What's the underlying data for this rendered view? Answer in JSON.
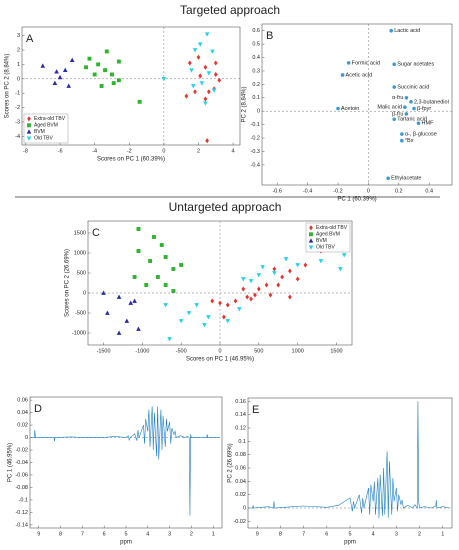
{
  "headings": [
    "Targeted approach",
    "Untargeted approach"
  ],
  "chart_data": [
    {
      "type": "scatter",
      "panel_label": "A",
      "x_label": "Scores on PC 1 (60.39%)",
      "y_label": "Scores on PC 2 (8.84%)",
      "xlim": [
        -8.2,
        4.4
      ],
      "ylim": [
        -4.6,
        3.6
      ],
      "xticks": [
        -8,
        -6,
        -4,
        -2,
        0,
        2,
        4
      ],
      "yticks": [
        -4,
        -3,
        -2,
        -1,
        0,
        1,
        2,
        3
      ],
      "zero_line_x": true,
      "zero_line_y": true,
      "legend": "lower left",
      "series": [
        {
          "name": "Extra-old TBV",
          "color": "#e8322c",
          "marker": "diamond",
          "x": [
            1.5,
            2,
            2.4,
            2.1,
            3,
            3.2,
            2.6,
            1.8,
            2.4,
            2.5,
            3,
            1.3,
            2.9
          ],
          "values": [
            1.1,
            1.5,
            0.8,
            0.2,
            0.3,
            -0.1,
            -0.9,
            -0.9,
            -1.4,
            -4.3,
            1.1,
            -1.2,
            -0.7
          ]
        },
        {
          "name": "Aged BVM",
          "color": "#2db52d",
          "marker": "square",
          "x": [
            -3.3,
            -2.6,
            -3.8,
            -4.5,
            -3.4,
            -4,
            -3,
            -2.9,
            -3.6,
            -1.4,
            -2.6,
            -4.3
          ],
          "values": [
            1.9,
            1.2,
            1,
            0.8,
            0.6,
            0.3,
            0.3,
            -0.3,
            -0.5,
            -1.6,
            -0.1,
            1.4
          ]
        },
        {
          "name": "BVM",
          "color": "#2a2aa8",
          "marker": "triangle-up",
          "x": [
            -7,
            -6.2,
            -5.7,
            -5.3,
            -5.5,
            -6,
            -6.3
          ],
          "values": [
            0.9,
            0.5,
            0.6,
            1.3,
            -0.5,
            0.1,
            -0.3
          ]
        },
        {
          "name": "Old TBV",
          "color": "#27d3e6",
          "marker": "triangle-down",
          "x": [
            2.5,
            2.1,
            1.8,
            2.8,
            0,
            2.2,
            2.9,
            1.7,
            2.4,
            1.6,
            2.6
          ],
          "values": [
            3.1,
            2.4,
            2,
            1.9,
            0,
            -0.3,
            -0.8,
            -0.5,
            -1.7,
            0.6,
            0.4
          ]
        }
      ]
    },
    {
      "type": "scatter",
      "panel_label": "B",
      "x_label": "PC 1 (60.39%)",
      "y_label": "PC 2 (8.84%)",
      "xlim": [
        -0.7,
        0.55
      ],
      "ylim": [
        -0.55,
        0.65
      ],
      "xticks": [
        -0.6,
        -0.4,
        -0.2,
        0,
        0.2,
        0.4
      ],
      "yticks": [
        0.6,
        0.5,
        0.4,
        0.3,
        0.2,
        0.1,
        0,
        -0.1,
        -0.2,
        -0.3,
        -0.4
      ],
      "zero_line_x": true,
      "zero_line_y": true,
      "series": [
        {
          "color": "#3a9ad9",
          "marker": "circle",
          "labels": [
            "Lactic acid",
            "Formic acid",
            "Sugar acetates",
            "Acetic acid",
            "Succinic acid",
            "α-fru",
            "Acetoin",
            "Malic acid",
            "2,3-butanediol",
            "β-fpyr",
            "β-fru",
            "Tartaric acid",
            "HMF",
            "α-, β-glucose",
            "°Bx",
            "Ethylacetate"
          ],
          "x": [
            0.15,
            -0.13,
            0.17,
            -0.17,
            0.17,
            0.25,
            -0.2,
            0.24,
            0.28,
            0.3,
            0.25,
            0.17,
            0.33,
            0.22,
            0.22,
            0.13
          ],
          "values": [
            0.6,
            0.36,
            0.35,
            0.27,
            0.18,
            0.1,
            0.02,
            0.03,
            0.07,
            0.02,
            -0.02,
            -0.06,
            -0.09,
            -0.17,
            -0.22,
            -0.5
          ]
        }
      ]
    },
    {
      "type": "scatter",
      "panel_label": "C",
      "x_label": "Scores on PC 1 (46.95%)",
      "y_label": "Scores on PC 2 (26.69%)",
      "xlim": [
        -1700,
        1700
      ],
      "ylim": [
        -1300,
        1800
      ],
      "xticks": [
        -1500,
        -1000,
        -500,
        0,
        500,
        1000,
        1500
      ],
      "yticks": [
        -1000,
        -500,
        0,
        500,
        1000,
        1500
      ],
      "zero_line_x": true,
      "zero_line_y": true,
      "legend": "upper right",
      "series": [
        {
          "name": "Extra-old TBV",
          "color": "#e8322c",
          "marker": "diamond",
          "x": [
            1150,
            1300,
            1100,
            900,
            800,
            700,
            600,
            500,
            450,
            350,
            300,
            200,
            100,
            0,
            -100,
            50,
            900,
            750,
            1000,
            650,
            400
          ],
          "values": [
            1400,
            1050,
            700,
            550,
            400,
            600,
            200,
            100,
            -50,
            -100,
            100,
            -200,
            -300,
            -250,
            -200,
            -600,
            -100,
            200,
            350,
            -50,
            -150
          ]
        },
        {
          "name": "Aged BVM",
          "color": "#2db52d",
          "marker": "square",
          "x": [
            -1050,
            -750,
            -850,
            -1050,
            -900,
            -700,
            -600,
            -800,
            -700,
            -600,
            -1100,
            -950,
            -500
          ],
          "values": [
            1600,
            1200,
            1400,
            1050,
            800,
            900,
            600,
            400,
            200,
            50,
            400,
            200,
            700
          ]
        },
        {
          "name": "BVM",
          "color": "#2a2aa8",
          "marker": "triangle-up",
          "x": [
            -1500,
            -1300,
            -1100,
            -1450,
            -1200,
            -1300,
            -1050,
            -1150
          ],
          "values": [
            0,
            -100,
            -200,
            -500,
            -700,
            -1000,
            -900,
            -250
          ]
        },
        {
          "name": "Old TBV",
          "color": "#27d3e6",
          "marker": "triangle-down",
          "x": [
            -700,
            -650,
            -500,
            -400,
            -300,
            -150,
            100,
            250,
            400,
            550,
            700,
            850,
            1000,
            1300,
            1600,
            1550,
            500,
            300,
            -200
          ],
          "values": [
            -300,
            -1150,
            -700,
            -500,
            -300,
            -600,
            -700,
            -400,
            300,
            650,
            500,
            850,
            700,
            800,
            950,
            600,
            450,
            350,
            -800
          ]
        }
      ]
    },
    {
      "type": "line",
      "panel_label": "D",
      "x_label": "ppm",
      "y_label": "PC 1 (46.95%)",
      "xlim": [
        9.4,
        0.6
      ],
      "ylim": [
        -0.145,
        0.065
      ],
      "xticks": [
        9,
        8,
        7,
        6,
        5,
        4,
        3,
        2,
        1
      ],
      "yticks": [
        0.06,
        0.04,
        0.02,
        0,
        -0.02,
        -0.04,
        -0.06,
        -0.08,
        -0.1,
        -0.12,
        -0.14
      ],
      "zero_line_y": true,
      "x": [
        9.3,
        9.2,
        9.18,
        9.15,
        8.5,
        8.3,
        8.28,
        8.25,
        7.5,
        7,
        6,
        5.5,
        5,
        4.9,
        4.85,
        4.8,
        4.6,
        4.5,
        4.45,
        4.4,
        4.2,
        4.15,
        4.1,
        4,
        3.95,
        3.9,
        3.8,
        3.75,
        3.7,
        3.6,
        3.55,
        3.5,
        3.4,
        3.35,
        3.3,
        3.2,
        3.15,
        3.1,
        3,
        2.95,
        2.9,
        2.8,
        2.75,
        2.7,
        2.5,
        2.3,
        2.2,
        2.1,
        2.07,
        2.04,
        2,
        1.8,
        1.5,
        1.3,
        1.28,
        1.25,
        1,
        0.7
      ],
      "series": [
        {
          "color": "#1a7fc4",
          "values": [
            0,
            0,
            0.012,
            0,
            0,
            0,
            -0.006,
            0,
            0.001,
            0,
            0,
            0.002,
            0,
            0.003,
            -0.004,
            0,
            0.006,
            -0.005,
            0.012,
            0,
            0.02,
            -0.01,
            0.03,
            0.01,
            0.045,
            -0.015,
            0.05,
            -0.02,
            0.04,
            -0.03,
            0.05,
            -0.035,
            0.045,
            -0.02,
            0.035,
            -0.015,
            0.03,
            0.01,
            0.025,
            -0.01,
            0.015,
            0.005,
            0.01,
            0,
            0.003,
            0,
            0.002,
            0,
            -0.125,
            0.005,
            0,
            0,
            0,
            0,
            0.005,
            0,
            0,
            0
          ]
        }
      ]
    },
    {
      "type": "line",
      "panel_label": "E",
      "x_label": "ppm",
      "y_label": "PC 2 (26.69%)",
      "xlim": [
        9.4,
        0.6
      ],
      "ylim": [
        -0.03,
        0.165
      ],
      "xticks": [
        9,
        8,
        7,
        6,
        5,
        4,
        3,
        2,
        1
      ],
      "yticks": [
        0.16,
        0.14,
        0.12,
        0.1,
        0.08,
        0.06,
        0.04,
        0.02,
        0,
        -0.02
      ],
      "zero_line_y": true,
      "x": [
        9.3,
        9.2,
        9.18,
        9.15,
        8.5,
        8.3,
        8.28,
        8.25,
        7.5,
        7,
        6,
        5.5,
        5,
        4.9,
        4.85,
        4.8,
        4.6,
        4.5,
        4.45,
        4.4,
        4.2,
        4.15,
        4.1,
        4,
        3.95,
        3.9,
        3.8,
        3.75,
        3.7,
        3.6,
        3.55,
        3.5,
        3.4,
        3.35,
        3.3,
        3.2,
        3.15,
        3.1,
        3,
        2.95,
        2.9,
        2.8,
        2.75,
        2.7,
        2.5,
        2.3,
        2.2,
        2.1,
        2.07,
        2.04,
        2,
        1.8,
        1.5,
        1.3,
        1.28,
        1.25,
        1,
        0.7
      ],
      "series": [
        {
          "color": "#1a7fc4",
          "values": [
            0,
            0,
            0.003,
            0,
            0.002,
            0,
            0.01,
            0,
            0.002,
            0.003,
            0.001,
            0.004,
            0.015,
            -0.005,
            0.01,
            0,
            0.02,
            -0.008,
            0.015,
            0,
            0.03,
            -0.01,
            0.035,
            0.01,
            0.04,
            -0.01,
            0.045,
            -0.015,
            0.05,
            -0.012,
            0.06,
            -0.01,
            0.085,
            -0.015,
            0.07,
            -0.01,
            0.045,
            0.01,
            0.03,
            -0.005,
            0.02,
            0.005,
            0.012,
            0,
            0.004,
            0,
            0.005,
            0,
            0.16,
            0.01,
            0,
            0.002,
            0,
            0.003,
            0.012,
            0,
            0.002,
            0
          ]
        }
      ]
    }
  ]
}
